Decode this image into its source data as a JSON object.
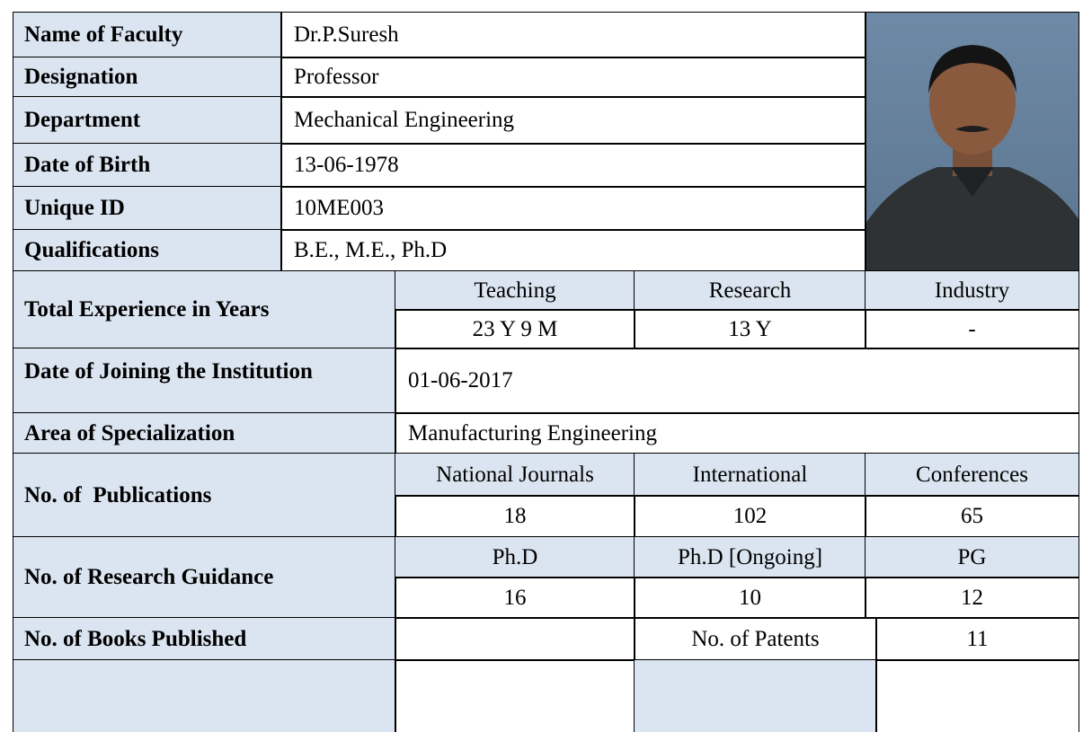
{
  "faculty": {
    "rows": [
      [
        "Name of Faculty",
        "Dr.P.Suresh"
      ],
      [
        "Designation",
        "Professor"
      ],
      [
        "Department",
        "Mechanical Engineering"
      ],
      [
        "Date of Birth",
        "13-06-1978"
      ],
      [
        "Unique ID",
        "10ME003"
      ],
      [
        "Qualifications",
        "B.E., M.E., Ph.D"
      ]
    ]
  },
  "experience": {
    "label": "Total Experience in Years",
    "headers": [
      "Teaching",
      "Research",
      "Industry"
    ],
    "values": [
      "23 Y 9 M",
      "13 Y",
      "-"
    ]
  },
  "joining": {
    "label": "Date of Joining the Institution",
    "value": "01-06-2017"
  },
  "specialization": {
    "label": "Area of Specialization",
    "value": "Manufacturing Engineering"
  },
  "publications": {
    "label": "No. of  Publications",
    "headers": [
      "National Journals",
      "International",
      "Conferences"
    ],
    "values": [
      18,
      102,
      65
    ]
  },
  "guidance": {
    "label": "No. of Research Guidance",
    "headers": [
      "Ph.D",
      "Ph.D [Ongoing]",
      "PG"
    ],
    "values": [
      16,
      10,
      12
    ]
  },
  "books": {
    "label": "No. of Books Published",
    "patents_label": "No. of Patents",
    "patents": 11
  }
}
